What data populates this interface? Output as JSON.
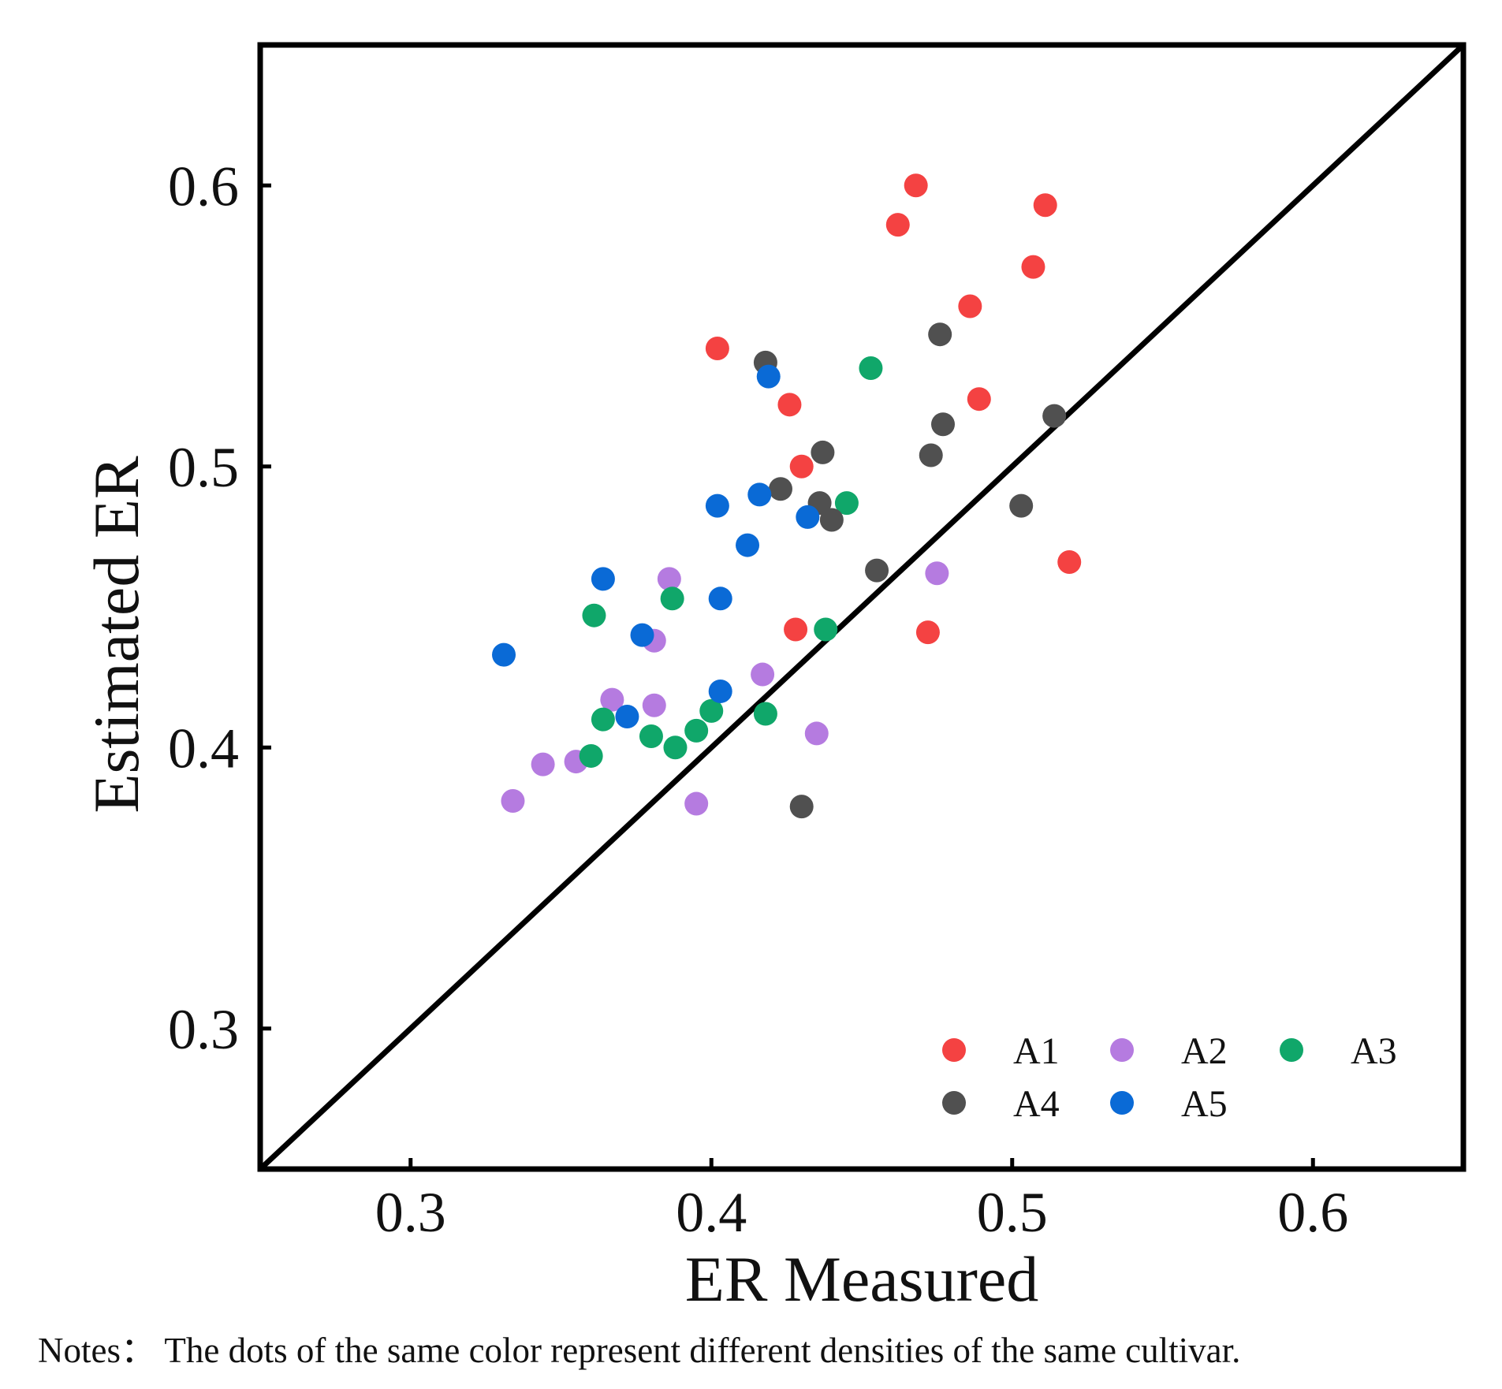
{
  "chart_data": {
    "type": "scatter",
    "xlabel": "ER Measured",
    "ylabel": "Estimated ER",
    "xlim": [
      0.25,
      0.65
    ],
    "ylim": [
      0.25,
      0.65
    ],
    "xticks": [
      0.3,
      0.4,
      0.5,
      0.6
    ],
    "yticks": [
      0.3,
      0.4,
      0.5,
      0.6
    ],
    "xtick_labels": [
      "0.3",
      "0.4",
      "0.5",
      "0.6"
    ],
    "ytick_labels": [
      "0.3",
      "0.4",
      "0.5",
      "0.6"
    ],
    "reference_line": "1:1",
    "legend_position": "bottom-right",
    "series": [
      {
        "name": "A1",
        "color": "#f44242",
        "points": [
          [
            0.468,
            0.6
          ],
          [
            0.462,
            0.586
          ],
          [
            0.511,
            0.593
          ],
          [
            0.507,
            0.571
          ],
          [
            0.486,
            0.557
          ],
          [
            0.402,
            0.542
          ],
          [
            0.426,
            0.522
          ],
          [
            0.489,
            0.524
          ],
          [
            0.43,
            0.5
          ],
          [
            0.519,
            0.466
          ],
          [
            0.428,
            0.442
          ],
          [
            0.472,
            0.441
          ]
        ]
      },
      {
        "name": "A2",
        "color": "#b57be0",
        "points": [
          [
            0.386,
            0.46
          ],
          [
            0.381,
            0.438
          ],
          [
            0.475,
            0.462
          ],
          [
            0.367,
            0.417
          ],
          [
            0.381,
            0.415
          ],
          [
            0.417,
            0.426
          ],
          [
            0.344,
            0.394
          ],
          [
            0.355,
            0.395
          ],
          [
            0.334,
            0.381
          ],
          [
            0.395,
            0.38
          ],
          [
            0.435,
            0.405
          ]
        ]
      },
      {
        "name": "A3",
        "color": "#10a76a",
        "points": [
          [
            0.453,
            0.535
          ],
          [
            0.445,
            0.487
          ],
          [
            0.361,
            0.447
          ],
          [
            0.387,
            0.453
          ],
          [
            0.438,
            0.442
          ],
          [
            0.364,
            0.41
          ],
          [
            0.38,
            0.404
          ],
          [
            0.388,
            0.4
          ],
          [
            0.395,
            0.406
          ],
          [
            0.4,
            0.413
          ],
          [
            0.418,
            0.412
          ],
          [
            0.36,
            0.397
          ]
        ]
      },
      {
        "name": "A4",
        "color": "#505050",
        "points": [
          [
            0.476,
            0.547
          ],
          [
            0.418,
            0.537
          ],
          [
            0.477,
            0.515
          ],
          [
            0.514,
            0.518
          ],
          [
            0.437,
            0.505
          ],
          [
            0.473,
            0.504
          ],
          [
            0.423,
            0.492
          ],
          [
            0.436,
            0.487
          ],
          [
            0.44,
            0.481
          ],
          [
            0.503,
            0.486
          ],
          [
            0.455,
            0.463
          ],
          [
            0.43,
            0.379
          ]
        ]
      },
      {
        "name": "A5",
        "color": "#0a6ad6",
        "points": [
          [
            0.419,
            0.532
          ],
          [
            0.402,
            0.486
          ],
          [
            0.416,
            0.49
          ],
          [
            0.432,
            0.482
          ],
          [
            0.412,
            0.472
          ],
          [
            0.364,
            0.46
          ],
          [
            0.403,
            0.453
          ],
          [
            0.377,
            0.44
          ],
          [
            0.331,
            0.433
          ],
          [
            0.403,
            0.42
          ],
          [
            0.372,
            0.411
          ]
        ]
      }
    ]
  },
  "notes": "Notes： The dots of the same color  represent different densities of the same cultivar."
}
